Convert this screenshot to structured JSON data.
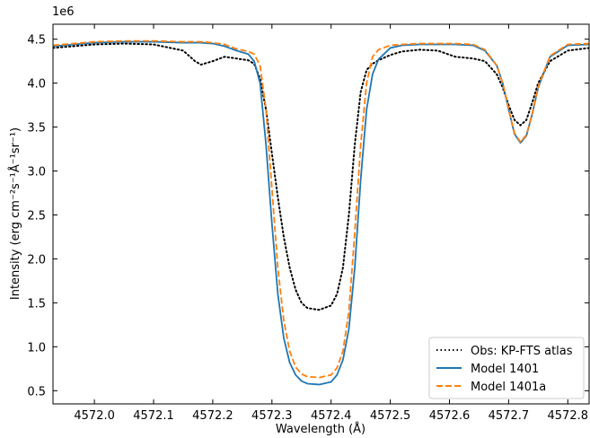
{
  "chart_data": {
    "type": "line",
    "x_label": "Wavelength (Å)",
    "y_label": "Intensity (erg cm⁻²s⁻¹Å⁻¹sr⁻¹)",
    "y_offset_label": "1e6",
    "xlim": [
      4571.93,
      4572.836
    ],
    "ylim": [
      0.35,
      4.67
    ],
    "xticks": [
      {
        "value": 4572.0,
        "label": "4572.0"
      },
      4572.1,
      4572.2,
      4572.3,
      4572.4,
      4572.5,
      4572.6,
      4572.7,
      4572.8
    ],
    "yticks": [
      0.5,
      {
        "value": 1.0,
        "label": "1.0"
      },
      1.5,
      {
        "value": 2.0,
        "label": "2.0"
      },
      2.5,
      {
        "value": 3.0,
        "label": "3.0"
      },
      3.5,
      {
        "value": 4.0,
        "label": "4.0"
      },
      4.5
    ],
    "legend": "lower right",
    "x": [
      4571.93,
      4572.0,
      4572.05,
      4572.1,
      4572.15,
      4572.17,
      4572.18,
      4572.2,
      4572.22,
      4572.24,
      4572.26,
      4572.27,
      4572.28,
      4572.29,
      4572.3,
      4572.31,
      4572.32,
      4572.33,
      4572.34,
      4572.35,
      4572.36,
      4572.38,
      4572.4,
      4572.41,
      4572.42,
      4572.43,
      4572.44,
      4572.45,
      4572.46,
      4572.47,
      4572.48,
      4572.5,
      4572.52,
      4572.55,
      4572.58,
      4572.61,
      4572.64,
      4572.66,
      4572.68,
      4572.69,
      4572.7,
      4572.71,
      4572.72,
      4572.73,
      4572.74,
      4572.75,
      4572.77,
      4572.8,
      4572.836
    ],
    "series": [
      {
        "name": "Obs: KP-FTS atlas",
        "color": "#000000",
        "dash": "dotted",
        "values": [
          4.4,
          4.44,
          4.45,
          4.44,
          4.37,
          4.25,
          4.21,
          4.25,
          4.3,
          4.28,
          4.26,
          4.22,
          4.05,
          3.7,
          3.2,
          2.7,
          2.25,
          1.9,
          1.65,
          1.5,
          1.44,
          1.42,
          1.47,
          1.6,
          1.9,
          2.5,
          3.3,
          3.9,
          4.15,
          4.22,
          4.26,
          4.32,
          4.36,
          4.38,
          4.37,
          4.3,
          4.28,
          4.25,
          4.1,
          3.95,
          3.75,
          3.58,
          3.52,
          3.58,
          3.78,
          4.0,
          4.25,
          4.37,
          4.4
        ]
      },
      {
        "name": "Model 1401",
        "color": "#1f77b4",
        "dash": "solid",
        "values": [
          4.42,
          4.46,
          4.47,
          4.47,
          4.46,
          4.46,
          4.46,
          4.45,
          4.42,
          4.37,
          4.33,
          4.25,
          4.0,
          3.3,
          2.4,
          1.6,
          1.1,
          0.82,
          0.68,
          0.61,
          0.58,
          0.57,
          0.6,
          0.68,
          0.85,
          1.2,
          1.9,
          2.9,
          3.7,
          4.1,
          4.27,
          4.4,
          4.43,
          4.44,
          4.44,
          4.44,
          4.43,
          4.37,
          4.2,
          4.0,
          3.7,
          3.42,
          3.32,
          3.4,
          3.65,
          3.95,
          4.3,
          4.43,
          4.44
        ]
      },
      {
        "name": "Model 1401a",
        "color": "#ff7f0e",
        "dash": "dashed",
        "values": [
          4.43,
          4.47,
          4.48,
          4.48,
          4.47,
          4.47,
          4.47,
          4.46,
          4.44,
          4.39,
          4.36,
          4.33,
          4.2,
          3.7,
          2.8,
          1.9,
          1.3,
          0.95,
          0.77,
          0.69,
          0.66,
          0.65,
          0.68,
          0.76,
          0.95,
          1.4,
          2.3,
          3.3,
          4.0,
          4.3,
          4.38,
          4.43,
          4.44,
          4.45,
          4.45,
          4.45,
          4.44,
          4.38,
          4.2,
          4.0,
          3.7,
          3.43,
          3.33,
          3.41,
          3.66,
          3.96,
          4.31,
          4.44,
          4.45
        ]
      }
    ]
  }
}
